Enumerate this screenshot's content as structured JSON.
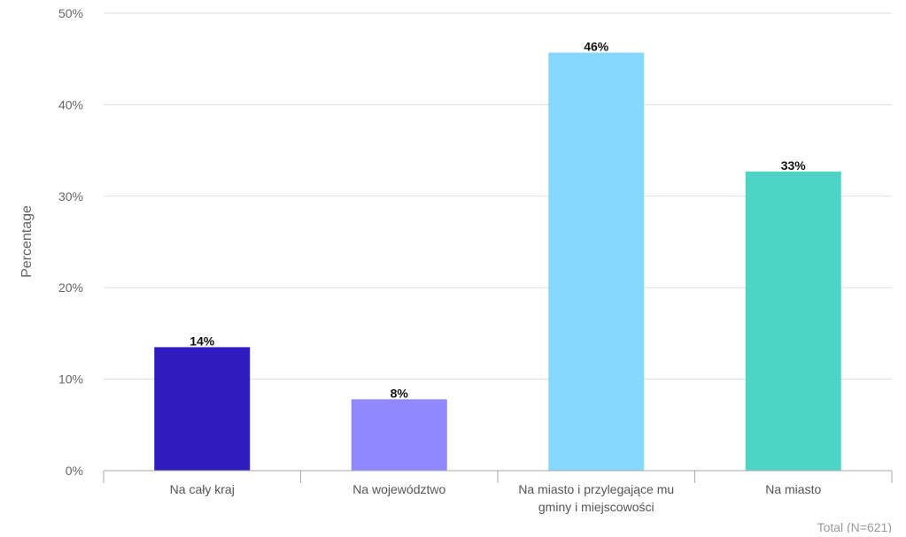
{
  "chart_data": {
    "type": "bar",
    "categories": [
      [
        "Na cały kraj"
      ],
      [
        "Na województwo"
      ],
      [
        "Na miasto i przylegające mu",
        "gminy i miejscowości"
      ],
      [
        "Na miasto"
      ]
    ],
    "values": [
      13.5,
      7.8,
      45.7,
      32.7
    ],
    "data_labels": [
      "14%",
      "8%",
      "46%",
      "33%"
    ],
    "colors": [
      "#2e1cbe",
      "#9088ff",
      "#86d8ff",
      "#4dd4c4"
    ],
    "ylabel": "Percentage",
    "ylim": [
      0,
      50
    ],
    "yticks": [
      0,
      10,
      20,
      30,
      40,
      50
    ],
    "ytick_labels": [
      "0%",
      "10%",
      "20%",
      "30%",
      "40%",
      "50%"
    ],
    "grid": true,
    "footnote": "Total (N=621)"
  }
}
